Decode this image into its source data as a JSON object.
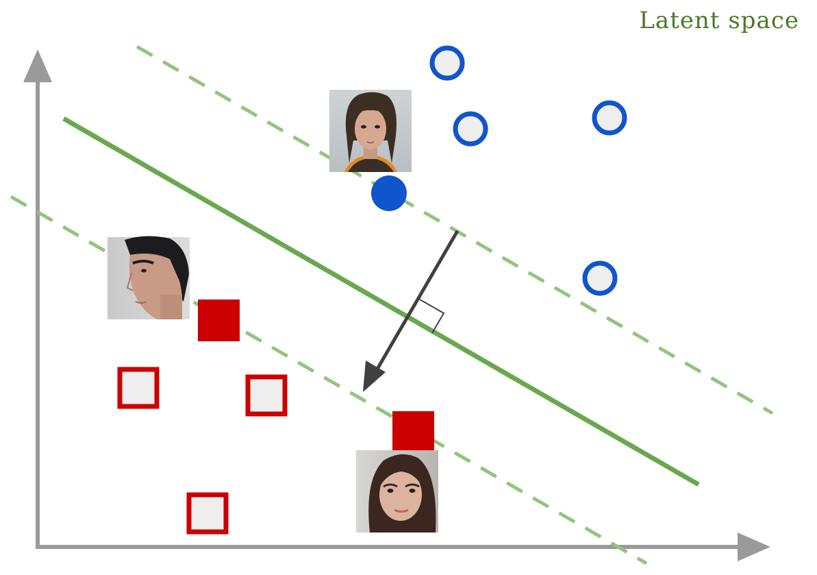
{
  "title": "Latent space",
  "colors": {
    "axis": "#9a9a9a",
    "boundary": "#6aa84f",
    "margin": "#93c47d",
    "positive": "#1155cc",
    "negative": "#cc0000",
    "marker_fill": "#eeeeee",
    "arrow": "#404040"
  },
  "classes": {
    "positive": {
      "marker": "circle"
    },
    "negative": {
      "marker": "square"
    }
  },
  "icons": {
    "face_1": "face-photo-long-hair-man-icon",
    "face_2": "face-photo-dark-hair-man-icon",
    "face_3": "face-photo-girl-icon"
  }
}
